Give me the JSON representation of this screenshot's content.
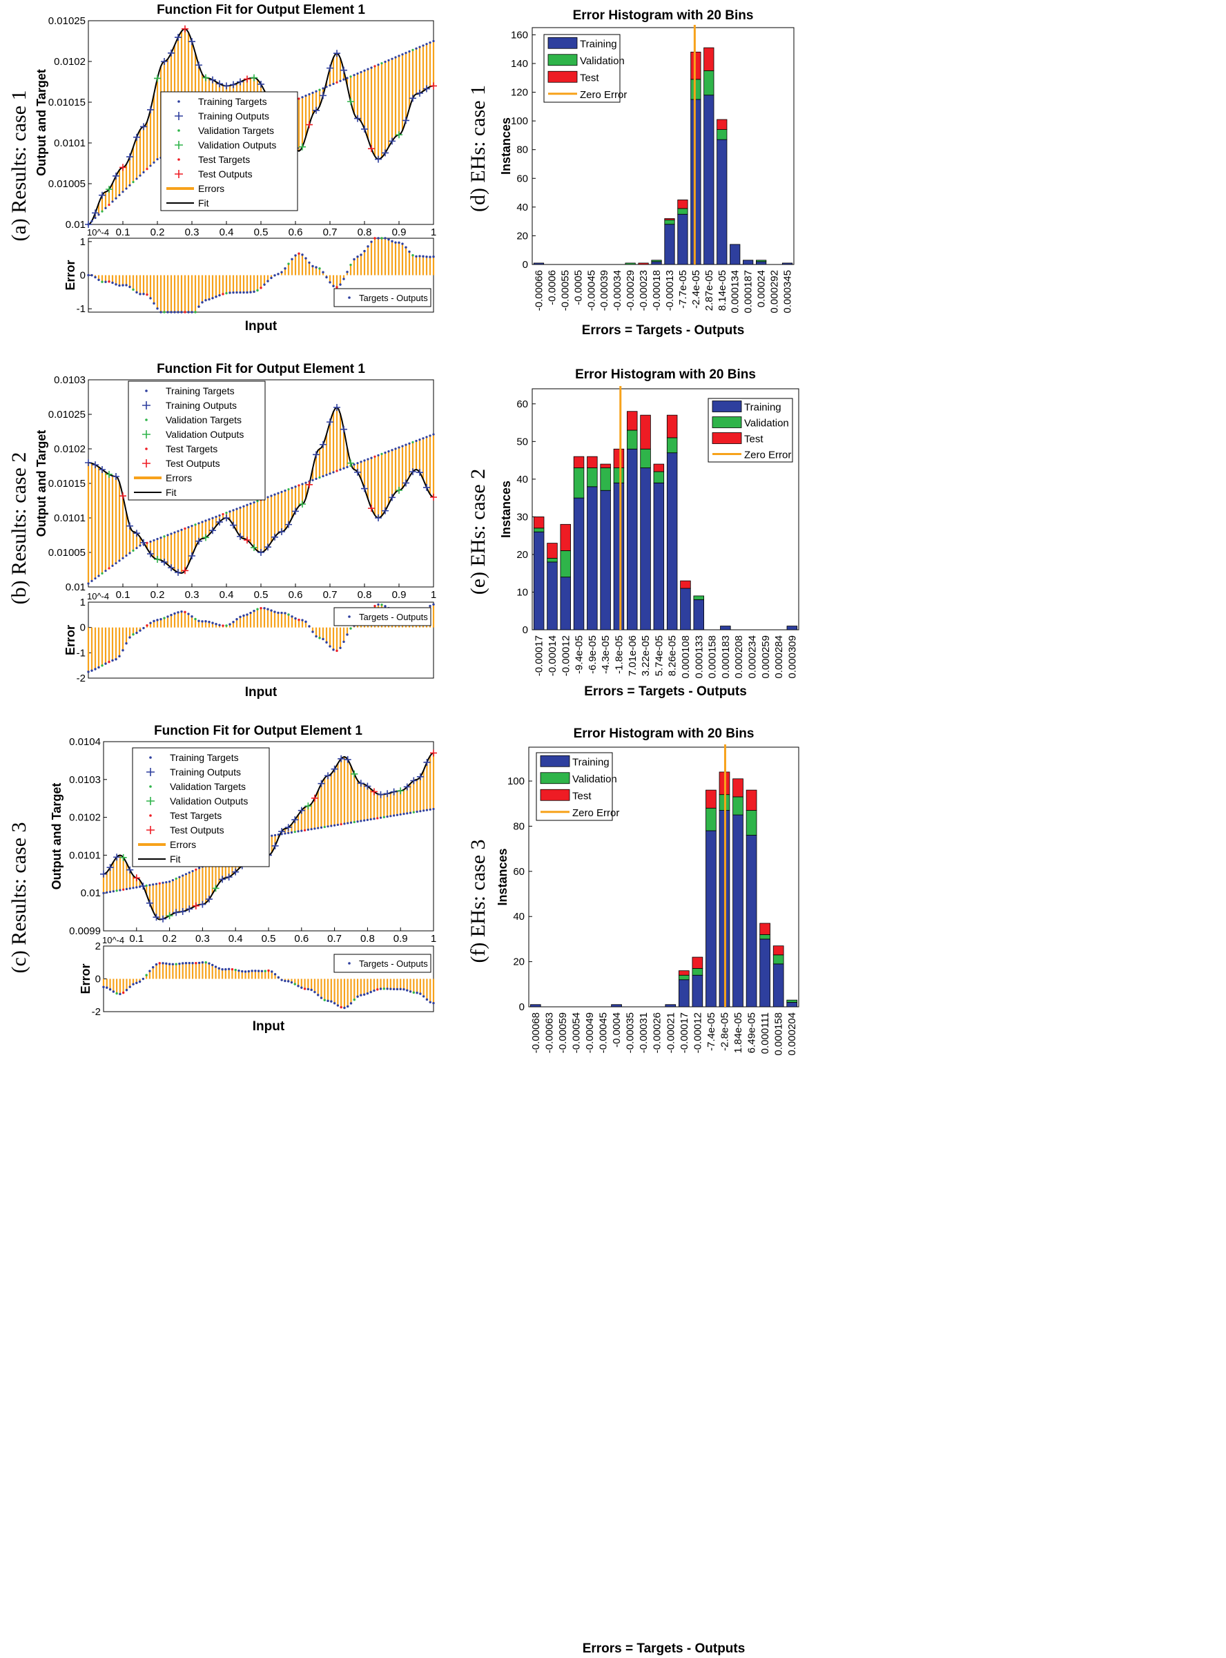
{
  "colors": {
    "training": "#2e3f9e",
    "validation": "#2fb44a",
    "test": "#ee1c24",
    "zero_error": "#f7a21b",
    "errors": "#f7a21b",
    "fit": "#000000",
    "train_marker": "#2e3f9e"
  },
  "chart_data": [
    {
      "id": "fit1",
      "type": "line",
      "row_label": "(a) Results: case 1",
      "title": "Function Fit for Output Element 1",
      "ylabel": "Output and Target",
      "xlabel": "Input",
      "ylim": [
        0.01,
        0.01025
      ],
      "yticks": [
        0.01,
        0.01005,
        0.0101,
        0.01015,
        0.0102,
        0.01025
      ],
      "ytick_labels": [
        "0.01",
        "0.01005",
        "0.0101",
        "0.01015",
        "0.0102",
        "0.01025"
      ],
      "xlim": [
        0,
        1
      ],
      "xticks": [
        0.1,
        0.2,
        0.3,
        0.4,
        0.5,
        0.6,
        0.7,
        0.8,
        0.9,
        1
      ],
      "xtick_labels": [
        "0.1",
        "0.2",
        "0.3",
        "0.4",
        "0.5",
        "0.6",
        "0.7",
        "0.8",
        "0.9",
        "1"
      ],
      "output_knots": [
        [
          0,
          0.01
        ],
        [
          0.05,
          0.01004
        ],
        [
          0.1,
          0.01007
        ],
        [
          0.16,
          0.01012
        ],
        [
          0.22,
          0.0102
        ],
        [
          0.28,
          0.01024
        ],
        [
          0.34,
          0.01018
        ],
        [
          0.4,
          0.01017
        ],
        [
          0.48,
          0.01018
        ],
        [
          0.55,
          0.01014
        ],
        [
          0.61,
          0.01009
        ],
        [
          0.66,
          0.01014
        ],
        [
          0.72,
          0.01021
        ],
        [
          0.78,
          0.01013
        ],
        [
          0.84,
          0.01008
        ],
        [
          0.9,
          0.01011
        ],
        [
          0.95,
          0.01016
        ],
        [
          1,
          0.01017
        ]
      ],
      "target_knots": [
        [
          0,
          0.01
        ],
        [
          0.2,
          0.01008
        ],
        [
          1,
          0.010225
        ]
      ],
      "legend": [
        "Training Targets",
        "Training Outputs",
        "Validation Targets",
        "Validation Outputs",
        "Test Targets",
        "Test Outputs",
        "Errors",
        "Fit"
      ],
      "error": {
        "ylabel": "Error",
        "scale_label": "10^-4",
        "ylim": [
          -1.1,
          1.1
        ],
        "yticks": [
          -1,
          0,
          1
        ],
        "ytick_labels": [
          "-1",
          "0",
          "1"
        ],
        "legend": "Targets - Outputs"
      }
    },
    {
      "id": "fit2",
      "type": "line",
      "row_label": "(b) Results: case 2",
      "title": "Function Fit for Output Element 1",
      "ylabel": "Output and Target",
      "xlabel": "Input",
      "ylim": [
        0.01,
        0.0103
      ],
      "yticks": [
        0.01,
        0.01005,
        0.0101,
        0.01015,
        0.0102,
        0.01025,
        0.0103
      ],
      "ytick_labels": [
        "0.01",
        "0.01005",
        "0.0101",
        "0.01015",
        "0.0102",
        "0.01025",
        "0.0103"
      ],
      "xlim": [
        0,
        1
      ],
      "xticks": [
        0.1,
        0.2,
        0.3,
        0.4,
        0.5,
        0.6,
        0.7,
        0.8,
        0.9,
        1
      ],
      "xtick_labels": [
        "0.1",
        "0.2",
        "0.3",
        "0.4",
        "0.5",
        "0.6",
        "0.7",
        "0.8",
        "0.9",
        "1"
      ],
      "output_knots": [
        [
          0,
          0.01018
        ],
        [
          0.08,
          0.01016
        ],
        [
          0.13,
          0.01008
        ],
        [
          0.2,
          0.01004
        ],
        [
          0.27,
          0.01002
        ],
        [
          0.33,
          0.01007
        ],
        [
          0.4,
          0.0101
        ],
        [
          0.45,
          0.01007
        ],
        [
          0.5,
          0.01005
        ],
        [
          0.56,
          0.01008
        ],
        [
          0.62,
          0.01012
        ],
        [
          0.67,
          0.0102
        ],
        [
          0.72,
          0.01026
        ],
        [
          0.77,
          0.01017
        ],
        [
          0.84,
          0.0101
        ],
        [
          0.9,
          0.01014
        ],
        [
          0.95,
          0.01017
        ],
        [
          1,
          0.01013
        ]
      ],
      "target_knots": [
        [
          0,
          0.010005
        ],
        [
          0.15,
          0.01006
        ],
        [
          1,
          0.010221
        ]
      ],
      "legend": [
        "Training Targets",
        "Training Outputs",
        "Validation Targets",
        "Validation Outputs",
        "Test Targets",
        "Test Outputs",
        "Errors",
        "Fit"
      ],
      "error": {
        "ylabel": "Error",
        "scale_label": "10^-4",
        "ylim": [
          -2,
          1
        ],
        "yticks": [
          -2,
          -1,
          0,
          1
        ],
        "ytick_labels": [
          "-2",
          "-1",
          "0",
          "1"
        ],
        "legend": "Targets - Outputs"
      }
    },
    {
      "id": "fit3",
      "type": "line",
      "row_label": "(c) Results: case 3",
      "title": "Function Fit for Output Element 1",
      "ylabel": "Output and Target",
      "xlabel": "Input",
      "ylim": [
        0.0099,
        0.0104
      ],
      "yticks": [
        0.0099,
        0.01,
        0.0101,
        0.0102,
        0.0103,
        0.0104
      ],
      "ytick_labels": [
        "0.0099",
        "0.01",
        "0.0101",
        "0.0102",
        "0.0103",
        "0.0104"
      ],
      "xlim": [
        0,
        1
      ],
      "xticks": [
        0.1,
        0.2,
        0.3,
        0.4,
        0.5,
        0.6,
        0.7,
        0.8,
        0.9,
        1
      ],
      "xtick_labels": [
        "0.1",
        "0.2",
        "0.3",
        "0.4",
        "0.5",
        "0.6",
        "0.7",
        "0.8",
        "0.9",
        "1"
      ],
      "output_knots": [
        [
          0,
          0.01005
        ],
        [
          0.05,
          0.0101
        ],
        [
          0.1,
          0.01004
        ],
        [
          0.17,
          0.00993
        ],
        [
          0.23,
          0.00995
        ],
        [
          0.3,
          0.00997
        ],
        [
          0.37,
          0.01004
        ],
        [
          0.44,
          0.01008
        ],
        [
          0.5,
          0.0101
        ],
        [
          0.55,
          0.01017
        ],
        [
          0.62,
          0.01023
        ],
        [
          0.68,
          0.01031
        ],
        [
          0.73,
          0.01036
        ],
        [
          0.78,
          0.01029
        ],
        [
          0.84,
          0.01026
        ],
        [
          0.9,
          0.01027
        ],
        [
          0.95,
          0.0103
        ],
        [
          1,
          0.01037
        ]
      ],
      "target_knots": [
        [
          0,
          0.01
        ],
        [
          0.2,
          0.01003
        ],
        [
          0.5,
          0.01015
        ],
        [
          1,
          0.010222
        ]
      ],
      "legend": [
        "Training Targets",
        "Training Outputs",
        "Validation Targets",
        "Validation Outputs",
        "Test Targets",
        "Test Outputs",
        "Errors",
        "Fit"
      ],
      "error": {
        "ylabel": "Error",
        "scale_label": "10^-4",
        "ylim": [
          -2,
          2
        ],
        "yticks": [
          -2,
          0,
          2
        ],
        "ytick_labels": [
          "-2",
          "0",
          "2"
        ],
        "legend": "Targets - Outputs"
      }
    },
    {
      "id": "hist1",
      "type": "bar",
      "row_label": "(d) EHs: case 1",
      "title": "Error Histogram with 20 Bins",
      "ylabel": "Instances",
      "xlabel": "Errors = Targets - Outputs",
      "ylim": [
        0,
        165
      ],
      "yticks": [
        0,
        20,
        40,
        60,
        80,
        100,
        120,
        140,
        160
      ],
      "ytick_labels": [
        "0",
        "20",
        "40",
        "60",
        "80",
        "100",
        "120",
        "140",
        "160"
      ],
      "categories": [
        "-0.00066",
        "-0.0006",
        "-0.00055",
        "-0.0005",
        "-0.00045",
        "-0.00039",
        "-0.00034",
        "-0.00029",
        "-0.00023",
        "-0.00018",
        "-0.00013",
        "-7.7e-05",
        "-2.4e-05",
        "2.87e-05",
        "8.14e-05",
        "0.000134",
        "0.000187",
        "0.00024",
        "0.000292",
        "0.000345"
      ],
      "series": [
        {
          "name": "Training",
          "values": [
            1,
            0,
            0,
            0,
            0,
            0,
            0,
            0,
            0,
            2,
            28,
            35,
            115,
            118,
            87,
            14,
            3,
            2,
            0,
            1
          ]
        },
        {
          "name": "Validation",
          "values": [
            0,
            0,
            0,
            0,
            0,
            0,
            0,
            1,
            0,
            1,
            3,
            4,
            14,
            17,
            7,
            0,
            0,
            1,
            0,
            0
          ]
        },
        {
          "name": "Test",
          "values": [
            0,
            0,
            0,
            0,
            0,
            0,
            0,
            0,
            1,
            0,
            1,
            6,
            19,
            16,
            7,
            0,
            0,
            0,
            0,
            0
          ]
        }
      ],
      "zero_error_bin": 12.42,
      "legend": [
        "Training",
        "Validation",
        "Test",
        "Zero Error"
      ]
    },
    {
      "id": "hist2",
      "type": "bar",
      "row_label": "(e) EHs: case 2",
      "title": "Error Histogram with 20 Bins",
      "ylabel": "Instances",
      "xlabel": "Errors = Targets - Outputs",
      "ylim": [
        0,
        64
      ],
      "yticks": [
        0,
        10,
        20,
        30,
        40,
        50,
        60
      ],
      "ytick_labels": [
        "0",
        "10",
        "20",
        "30",
        "40",
        "50",
        "60"
      ],
      "categories": [
        "-0.00017",
        "-0.00014",
        "-0.00012",
        "-9.4e-05",
        "-6.9e-05",
        "-4.3e-05",
        "-1.8e-05",
        "7.01e-06",
        "3.22e-05",
        "5.74e-05",
        "8.26e-05",
        "0.000108",
        "0.000133",
        "0.000158",
        "0.000183",
        "0.000208",
        "0.000234",
        "0.000259",
        "0.000284",
        "0.000309"
      ],
      "series": [
        {
          "name": "Training",
          "values": [
            26,
            18,
            14,
            35,
            38,
            37,
            39,
            48,
            43,
            39,
            47,
            11,
            8,
            0,
            1,
            0,
            0,
            0,
            0,
            1
          ]
        },
        {
          "name": "Validation",
          "values": [
            1,
            1,
            7,
            8,
            5,
            6,
            4,
            5,
            5,
            3,
            4,
            0,
            1,
            0,
            0,
            0,
            0,
            0,
            0,
            0
          ]
        },
        {
          "name": "Test",
          "values": [
            3,
            4,
            7,
            3,
            3,
            1,
            5,
            5,
            9,
            2,
            6,
            2,
            0,
            0,
            0,
            0,
            0,
            0,
            0,
            0
          ]
        }
      ],
      "zero_error_bin": 6.62,
      "legend": [
        "Training",
        "Validation",
        "Test",
        "Zero Error"
      ]
    },
    {
      "id": "hist3",
      "type": "bar",
      "row_label": "(f) EHs: case 3",
      "title": "Error Histogram with 20 Bins",
      "ylabel": "Instances",
      "xlabel": "Errors = Targets - Outputs",
      "ylim": [
        0,
        115
      ],
      "yticks": [
        0,
        20,
        40,
        60,
        80,
        100
      ],
      "ytick_labels": [
        "0",
        "20",
        "40",
        "60",
        "80",
        "100"
      ],
      "categories": [
        "-0.00068",
        "-0.00063",
        "-0.00059",
        "-0.00054",
        "-0.00049",
        "-0.00045",
        "-0.0004",
        "-0.00035",
        "-0.00031",
        "-0.00026",
        "-0.00021",
        "-0.00017",
        "-0.00012",
        "-7.4e-05",
        "-2.8e-05",
        "1.84e-05",
        "6.49e-05",
        "0.000111",
        "0.000158",
        "0.000204"
      ],
      "series": [
        {
          "name": "Training",
          "values": [
            1,
            0,
            0,
            0,
            0,
            0,
            1,
            0,
            0,
            0,
            1,
            12,
            14,
            78,
            87,
            85,
            76,
            30,
            19,
            2
          ]
        },
        {
          "name": "Validation",
          "values": [
            0,
            0,
            0,
            0,
            0,
            0,
            0,
            0,
            0,
            0,
            0,
            2,
            3,
            10,
            7,
            8,
            11,
            2,
            4,
            1
          ]
        },
        {
          "name": "Test",
          "values": [
            0,
            0,
            0,
            0,
            0,
            0,
            0,
            0,
            0,
            0,
            0,
            2,
            5,
            8,
            10,
            8,
            9,
            5,
            4,
            0
          ]
        }
      ],
      "zero_error_bin": 14.55,
      "legend": [
        "Training",
        "Validation",
        "Test",
        "Zero Error"
      ]
    }
  ]
}
